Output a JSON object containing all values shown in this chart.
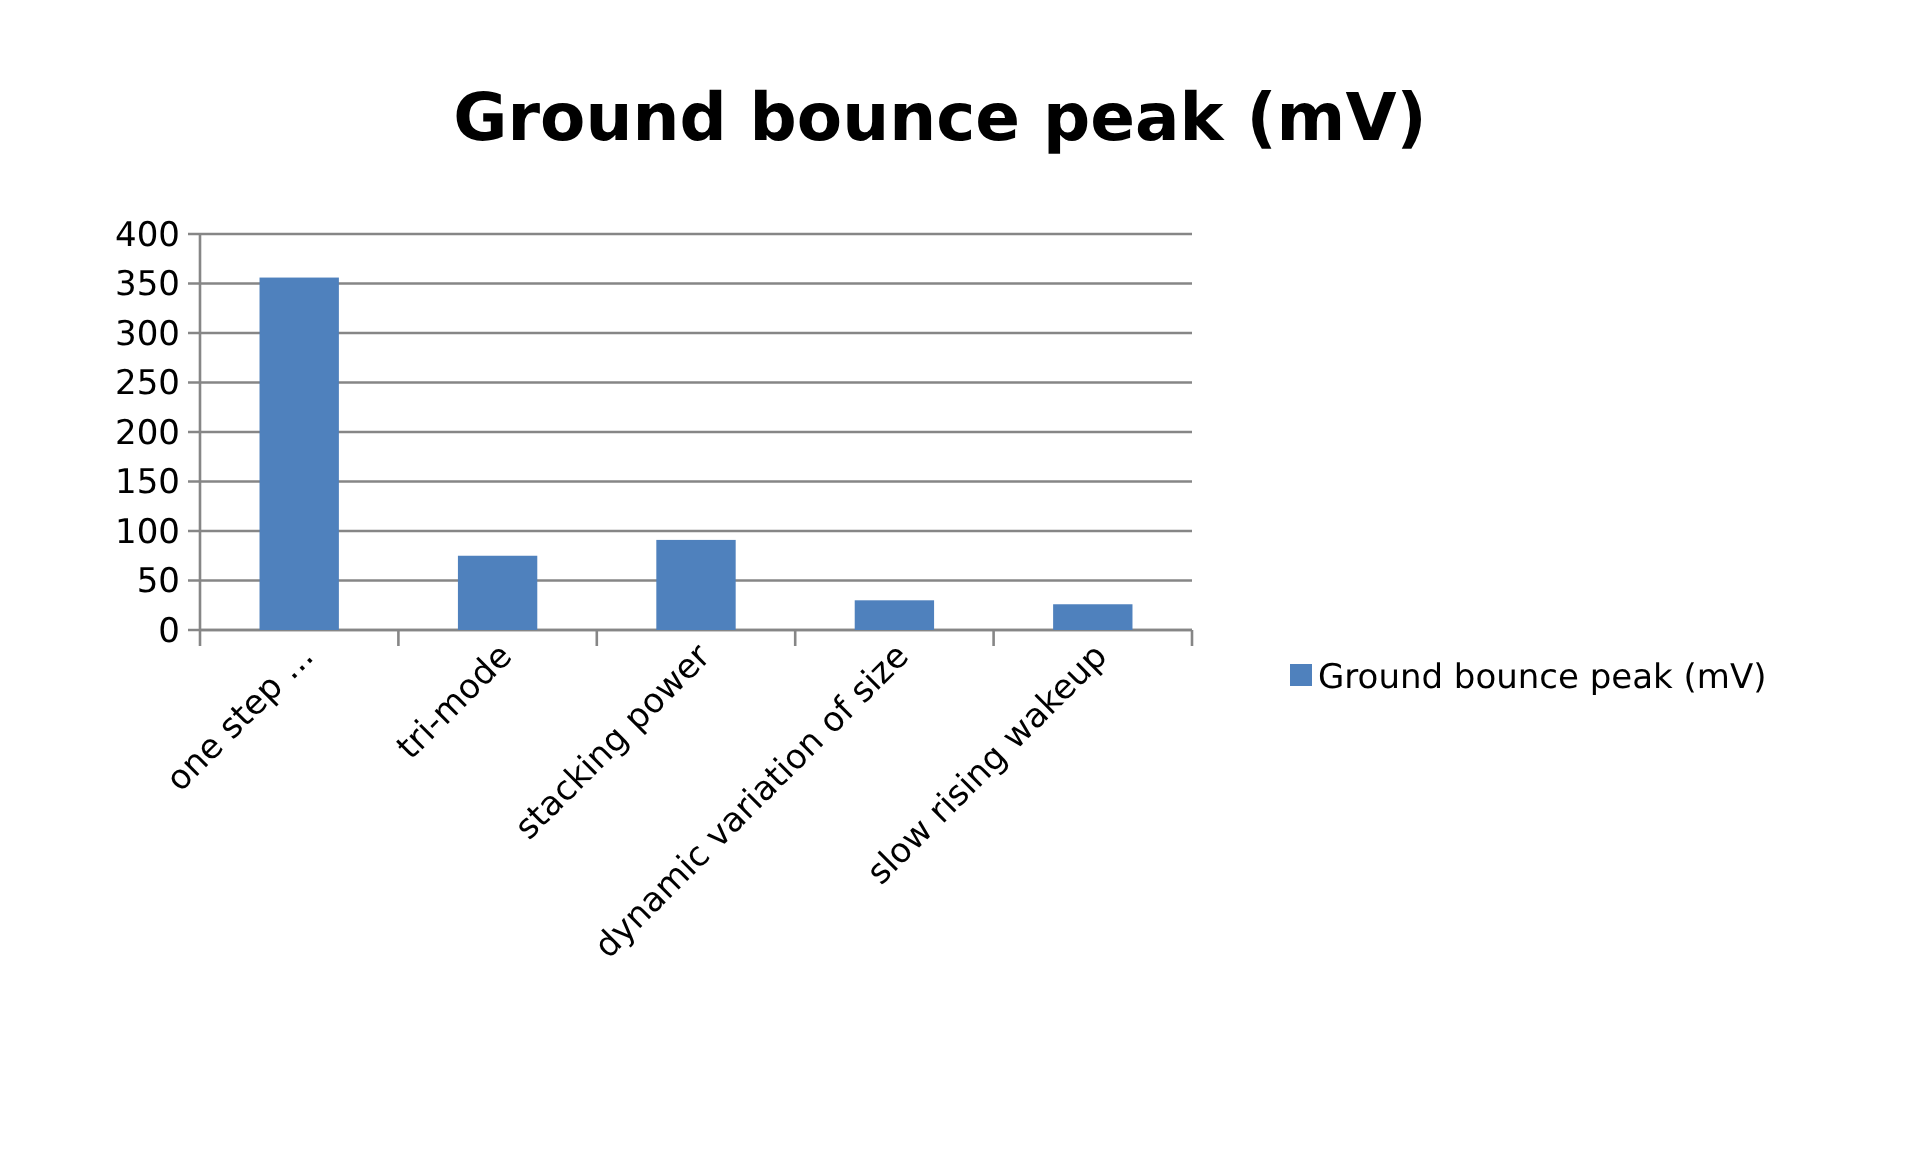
{
  "chart_data": {
    "type": "bar",
    "title": "Ground bounce peak (mV)",
    "categories": [
      "one step ...",
      "tri-mode",
      "stacking power",
      "dynamic variation of size",
      "slow rising wakeup"
    ],
    "series": [
      {
        "name": "Ground bounce peak (mV)",
        "color": "#4f81bd",
        "values": [
          356,
          75,
          91,
          30,
          26
        ]
      }
    ],
    "ylim": [
      0,
      400
    ],
    "yticks": [
      0,
      50,
      100,
      150,
      200,
      250,
      300,
      350,
      400
    ],
    "grid": "y",
    "legend": "right"
  }
}
